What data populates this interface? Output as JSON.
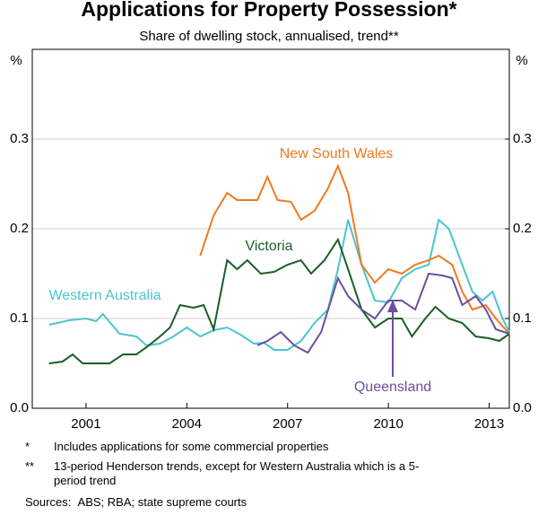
{
  "chart_data": {
    "type": "line",
    "title": "Applications for Property Possession*",
    "subtitle": "Share of dwelling stock, annualised, trend**",
    "y_label": "%",
    "y2_label": "%",
    "xlim": [
      1999.4,
      2013.6
    ],
    "xticks": [
      2001,
      2004,
      2007,
      2010,
      2013
    ],
    "ylim": [
      0,
      0.4
    ],
    "yticks": [
      {
        "value": 0,
        "label": "0.0"
      },
      0.1,
      0.2,
      0.3
    ],
    "y2lim": [
      0,
      0.4
    ],
    "y2ticks": [
      {
        "value": 0,
        "label": "0.0"
      },
      0.1,
      0.2,
      0.3
    ],
    "grid": true,
    "series": [
      {
        "name": "Western Australia",
        "color": "#4cc4d0",
        "x": [
          1999.9,
          2000.5,
          2001,
          2001.3,
          2001.5,
          2002,
          2002.5,
          2002.8,
          2003.2,
          2003.6,
          2004,
          2004.4,
          2004.8,
          2005.2,
          2005.6,
          2006,
          2006.3,
          2006.6,
          2007,
          2007.4,
          2007.8,
          2008.2,
          2008.5,
          2008.8,
          2009.2,
          2009.6,
          2010,
          2010.4,
          2010.8,
          2011.2,
          2011.5,
          2011.8,
          2012.2,
          2012.5,
          2012.8,
          2013.1,
          2013.4,
          2013.6
        ],
        "values": [
          0.093,
          0.098,
          0.1,
          0.097,
          0.105,
          0.083,
          0.08,
          0.07,
          0.072,
          0.08,
          0.09,
          0.08,
          0.087,
          0.09,
          0.082,
          0.072,
          0.073,
          0.065,
          0.065,
          0.075,
          0.095,
          0.11,
          0.155,
          0.21,
          0.16,
          0.12,
          0.118,
          0.145,
          0.155,
          0.16,
          0.21,
          0.2,
          0.16,
          0.13,
          0.12,
          0.13,
          0.1,
          0.085
        ]
      },
      {
        "name": "Victoria",
        "color": "#1a5e2a",
        "x": [
          1999.9,
          2000.3,
          2000.6,
          2000.9,
          2001.3,
          2001.7,
          2002.1,
          2002.5,
          2002.8,
          2003.2,
          2003.5,
          2003.8,
          2004.2,
          2004.5,
          2004.8,
          2005.2,
          2005.5,
          2005.8,
          2006.2,
          2006.6,
          2007,
          2007.4,
          2007.7,
          2008.1,
          2008.5,
          2008.8,
          2009.2,
          2009.6,
          2010,
          2010.4,
          2010.7,
          2011.1,
          2011.4,
          2011.8,
          2012.2,
          2012.6,
          2013,
          2013.3,
          2013.6
        ],
        "values": [
          0.05,
          0.052,
          0.06,
          0.05,
          0.05,
          0.05,
          0.06,
          0.06,
          0.068,
          0.08,
          0.09,
          0.115,
          0.112,
          0.115,
          0.088,
          0.165,
          0.155,
          0.165,
          0.15,
          0.152,
          0.16,
          0.165,
          0.15,
          0.165,
          0.188,
          0.155,
          0.11,
          0.09,
          0.1,
          0.1,
          0.08,
          0.1,
          0.113,
          0.1,
          0.095,
          0.08,
          0.078,
          0.075,
          0.083
        ]
      },
      {
        "name": "New South Wales",
        "color": "#f07a21",
        "x": [
          2004.4,
          2004.8,
          2005.2,
          2005.5,
          2005.8,
          2006.1,
          2006.4,
          2006.7,
          2007.1,
          2007.4,
          2007.8,
          2008.2,
          2008.5,
          2008.8,
          2009.2,
          2009.6,
          2010,
          2010.4,
          2010.8,
          2011.2,
          2011.5,
          2011.9,
          2012.2,
          2012.5,
          2012.9,
          2013.2,
          2013.6
        ],
        "values": [
          0.17,
          0.215,
          0.24,
          0.232,
          0.232,
          0.232,
          0.258,
          0.232,
          0.23,
          0.21,
          0.22,
          0.245,
          0.27,
          0.24,
          0.16,
          0.14,
          0.155,
          0.15,
          0.16,
          0.165,
          0.17,
          0.16,
          0.13,
          0.11,
          0.115,
          0.1,
          0.083
        ]
      },
      {
        "name": "Queensland",
        "color": "#6b4fa0",
        "x": [
          2006.1,
          2006.4,
          2006.8,
          2007.2,
          2007.6,
          2008,
          2008.5,
          2008.8,
          2009.2,
          2009.6,
          2010,
          2010.4,
          2010.8,
          2011.2,
          2011.6,
          2011.9,
          2012.2,
          2012.6,
          2012.9,
          2013.2,
          2013.6
        ],
        "values": [
          0.07,
          0.075,
          0.085,
          0.07,
          0.062,
          0.085,
          0.145,
          0.125,
          0.11,
          0.1,
          0.12,
          0.12,
          0.11,
          0.15,
          0.148,
          0.145,
          0.115,
          0.125,
          0.11,
          0.088,
          0.083
        ]
      }
    ]
  },
  "notes": [
    {
      "marker": "*",
      "text": "Includes applications for some commercial properties"
    },
    {
      "marker": "**",
      "text": "13-period Henderson trends, except for Western Australia which is a 5-period trend"
    }
  ],
  "sources": {
    "label": "Sources:",
    "text": "ABS; RBA; state supreme courts"
  }
}
